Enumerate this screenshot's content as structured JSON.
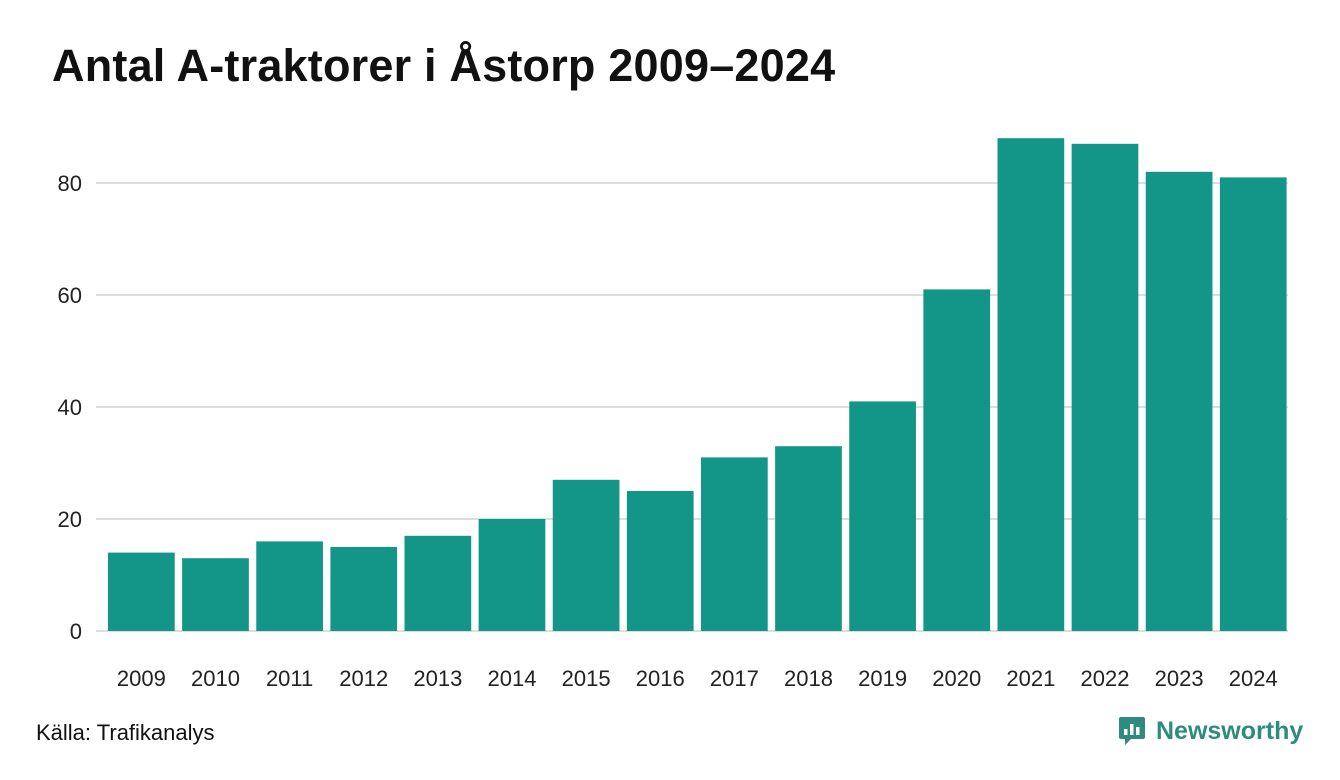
{
  "chart_data": {
    "type": "bar",
    "title": "Antal A-traktorer i Åstorp 2009–2024",
    "xlabel": "",
    "ylabel": "",
    "categories": [
      "2009",
      "2010",
      "2011",
      "2012",
      "2013",
      "2014",
      "2015",
      "2016",
      "2017",
      "2018",
      "2019",
      "2020",
      "2021",
      "2022",
      "2023",
      "2024"
    ],
    "values": [
      14,
      13,
      16,
      15,
      17,
      20,
      27,
      25,
      31,
      33,
      41,
      61,
      88,
      87,
      82,
      81
    ],
    "ylim": [
      0,
      90
    ],
    "yticks": [
      0,
      20,
      40,
      60,
      80
    ],
    "grid": true,
    "bar_color": "#139688"
  },
  "footer": {
    "source": "Källa: Trafikanalys",
    "brand": "Newsworthy",
    "brand_icon": "newsworthy-logo-icon"
  },
  "colors": {
    "bar": "#139688",
    "brand": "#2e8b7e",
    "grid": "#dddddd"
  }
}
